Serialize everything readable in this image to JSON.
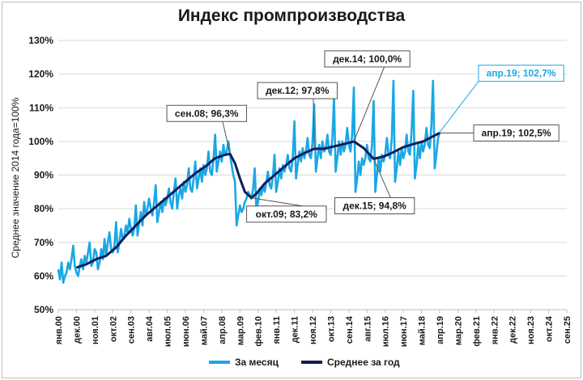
{
  "colors": {
    "monthly": "#1aa7e6",
    "average": "#0f1d5a",
    "grid": "#d9d9d9",
    "callout_border": "#555555",
    "callout_blue_border": "#1aa7e6"
  },
  "chart_data": {
    "type": "line",
    "title": "Индекс промпроизводства",
    "xlabel": "",
    "ylabel": "Среднее значение 2014 года=100%",
    "ylim": [
      50,
      130
    ],
    "y_ticks": [
      "50%",
      "60%",
      "70%",
      "80%",
      "90%",
      "100%",
      "110%",
      "120%",
      "130%"
    ],
    "x_range": [
      "2000-01",
      "2025-09"
    ],
    "x_tick_labels": [
      "янв.00",
      "дек.00",
      "ноя.01",
      "окт.02",
      "сен.03",
      "авг.04",
      "июл.05",
      "июн.06",
      "май.07",
      "апр.08",
      "мар.09",
      "фев.10",
      "янв.11",
      "дек.11",
      "ноя.12",
      "окт.13",
      "сен.14",
      "авг.15",
      "июл.16",
      "июн.17",
      "май.18",
      "апр.19",
      "мар.20",
      "фев.21",
      "янв.22",
      "дек.22",
      "ноя.23",
      "окт.24",
      "сен.25"
    ],
    "grid": true,
    "legend": "bottom",
    "series": [
      {
        "name": "За месяц",
        "key": "monthly",
        "points": [
          [
            "2000-01",
            62
          ],
          [
            "2000-02",
            59
          ],
          [
            "2000-03",
            64
          ],
          [
            "2000-04",
            58
          ],
          [
            "2000-05",
            60
          ],
          [
            "2000-06",
            61
          ],
          [
            "2000-07",
            64
          ],
          [
            "2000-08",
            62
          ],
          [
            "2000-09",
            65
          ],
          [
            "2000-10",
            69
          ],
          [
            "2000-11",
            63
          ],
          [
            "2000-12",
            61
          ],
          [
            "2001-01",
            60
          ],
          [
            "2001-02",
            63
          ],
          [
            "2001-03",
            65
          ],
          [
            "2001-04",
            62
          ],
          [
            "2001-05",
            66
          ],
          [
            "2001-06",
            64
          ],
          [
            "2001-07",
            67
          ],
          [
            "2001-08",
            70
          ],
          [
            "2001-09",
            63
          ],
          [
            "2001-10",
            64
          ],
          [
            "2001-11",
            68
          ],
          [
            "2001-12",
            67
          ],
          [
            "2002-01",
            62
          ],
          [
            "2002-02",
            64
          ],
          [
            "2002-03",
            68
          ],
          [
            "2002-04",
            65
          ],
          [
            "2002-05",
            71
          ],
          [
            "2002-06",
            66
          ],
          [
            "2002-07",
            70
          ],
          [
            "2002-08",
            73
          ],
          [
            "2002-09",
            68
          ],
          [
            "2002-10",
            67
          ],
          [
            "2002-11",
            69
          ],
          [
            "2002-12",
            76
          ],
          [
            "2003-01",
            67
          ],
          [
            "2003-02",
            70
          ],
          [
            "2003-03",
            74
          ],
          [
            "2003-04",
            71
          ],
          [
            "2003-05",
            72
          ],
          [
            "2003-06",
            75
          ],
          [
            "2003-07",
            73
          ],
          [
            "2003-08",
            77
          ],
          [
            "2003-09",
            74
          ],
          [
            "2003-10",
            72
          ],
          [
            "2003-11",
            74
          ],
          [
            "2003-12",
            81
          ],
          [
            "2004-01",
            72
          ],
          [
            "2004-02",
            76
          ],
          [
            "2004-03",
            79
          ],
          [
            "2004-04",
            75
          ],
          [
            "2004-05",
            82
          ],
          [
            "2004-06",
            78
          ],
          [
            "2004-07",
            80
          ],
          [
            "2004-08",
            83
          ],
          [
            "2004-09",
            80
          ],
          [
            "2004-10",
            78
          ],
          [
            "2004-11",
            82
          ],
          [
            "2004-12",
            87
          ],
          [
            "2005-01",
            76
          ],
          [
            "2005-02",
            79
          ],
          [
            "2005-03",
            82
          ],
          [
            "2005-04",
            79
          ],
          [
            "2005-05",
            83
          ],
          [
            "2005-06",
            81
          ],
          [
            "2005-07",
            83
          ],
          [
            "2005-08",
            86
          ],
          [
            "2005-09",
            82
          ],
          [
            "2005-10",
            80
          ],
          [
            "2005-11",
            85
          ],
          [
            "2005-12",
            89
          ],
          [
            "2006-01",
            80
          ],
          [
            "2006-02",
            84
          ],
          [
            "2006-03",
            86
          ],
          [
            "2006-04",
            83
          ],
          [
            "2006-05",
            88
          ],
          [
            "2006-06",
            85
          ],
          [
            "2006-07",
            87
          ],
          [
            "2006-08",
            92
          ],
          [
            "2006-09",
            86
          ],
          [
            "2006-10",
            85
          ],
          [
            "2006-11",
            89
          ],
          [
            "2006-12",
            94
          ],
          [
            "2007-01",
            86
          ],
          [
            "2007-02",
            89
          ],
          [
            "2007-03",
            92
          ],
          [
            "2007-04",
            88
          ],
          [
            "2007-05",
            93
          ],
          [
            "2007-06",
            90
          ],
          [
            "2007-07",
            92
          ],
          [
            "2007-08",
            97
          ],
          [
            "2007-09",
            91
          ],
          [
            "2007-10",
            90
          ],
          [
            "2007-11",
            95
          ],
          [
            "2007-12",
            102
          ],
          [
            "2008-01",
            91
          ],
          [
            "2008-02",
            94
          ],
          [
            "2008-03",
            97
          ],
          [
            "2008-04",
            94
          ],
          [
            "2008-05",
            99
          ],
          [
            "2008-06",
            96
          ],
          [
            "2008-07",
            97
          ],
          [
            "2008-08",
            100
          ],
          [
            "2008-09",
            96
          ],
          [
            "2008-10",
            93
          ],
          [
            "2008-11",
            90
          ],
          [
            "2008-12",
            88
          ],
          [
            "2009-01",
            75
          ],
          [
            "2009-02",
            78
          ],
          [
            "2009-03",
            81
          ],
          [
            "2009-04",
            79
          ],
          [
            "2009-05",
            80
          ],
          [
            "2009-06",
            82
          ],
          [
            "2009-07",
            83
          ],
          [
            "2009-08",
            85
          ],
          [
            "2009-09",
            84
          ],
          [
            "2009-10",
            83
          ],
          [
            "2009-11",
            86
          ],
          [
            "2009-12",
            92
          ],
          [
            "2010-01",
            79
          ],
          [
            "2010-02",
            82
          ],
          [
            "2010-03",
            86
          ],
          [
            "2010-04",
            84
          ],
          [
            "2010-05",
            87
          ],
          [
            "2010-06",
            85
          ],
          [
            "2010-07",
            88
          ],
          [
            "2010-08",
            91
          ],
          [
            "2010-09",
            87
          ],
          [
            "2010-10",
            86
          ],
          [
            "2010-11",
            90
          ],
          [
            "2010-12",
            96
          ],
          [
            "2011-01",
            85
          ],
          [
            "2011-02",
            88
          ],
          [
            "2011-03",
            92
          ],
          [
            "2011-04",
            89
          ],
          [
            "2011-05",
            93
          ],
          [
            "2011-06",
            91
          ],
          [
            "2011-07",
            93
          ],
          [
            "2011-08",
            96
          ],
          [
            "2011-09",
            92
          ],
          [
            "2011-10",
            91
          ],
          [
            "2011-11",
            95
          ],
          [
            "2011-12",
            106
          ],
          [
            "2012-01",
            89
          ],
          [
            "2012-02",
            93
          ],
          [
            "2012-03",
            97
          ],
          [
            "2012-04",
            94
          ],
          [
            "2012-05",
            98
          ],
          [
            "2012-06",
            95
          ],
          [
            "2012-07",
            97
          ],
          [
            "2012-08",
            101
          ],
          [
            "2012-09",
            96
          ],
          [
            "2012-10",
            95
          ],
          [
            "2012-11",
            100
          ],
          [
            "2012-12",
            111
          ],
          [
            "2013-01",
            91
          ],
          [
            "2013-02",
            95
          ],
          [
            "2013-03",
            99
          ],
          [
            "2013-04",
            95
          ],
          [
            "2013-05",
            100
          ],
          [
            "2013-06",
            97
          ],
          [
            "2013-07",
            98
          ],
          [
            "2013-08",
            102
          ],
          [
            "2013-09",
            97
          ],
          [
            "2013-10",
            96
          ],
          [
            "2013-11",
            101
          ],
          [
            "2013-12",
            113
          ],
          [
            "2014-01",
            91
          ],
          [
            "2014-02",
            95
          ],
          [
            "2014-03",
            100
          ],
          [
            "2014-04",
            96
          ],
          [
            "2014-05",
            100
          ],
          [
            "2014-06",
            97
          ],
          [
            "2014-07",
            99
          ],
          [
            "2014-08",
            104
          ],
          [
            "2014-09",
            99
          ],
          [
            "2014-10",
            97
          ],
          [
            "2014-11",
            102
          ],
          [
            "2014-12",
            116
          ],
          [
            "2015-01",
            85
          ],
          [
            "2015-02",
            89
          ],
          [
            "2015-03",
            94
          ],
          [
            "2015-04",
            90
          ],
          [
            "2015-05",
            95
          ],
          [
            "2015-06",
            93
          ],
          [
            "2015-07",
            95
          ],
          [
            "2015-08",
            99
          ],
          [
            "2015-09",
            95
          ],
          [
            "2015-10",
            94
          ],
          [
            "2015-11",
            99
          ],
          [
            "2015-12",
            112
          ],
          [
            "2016-01",
            85
          ],
          [
            "2016-02",
            90
          ],
          [
            "2016-03",
            95
          ],
          [
            "2016-04",
            91
          ],
          [
            "2016-05",
            96
          ],
          [
            "2016-06",
            94
          ],
          [
            "2016-07",
            96
          ],
          [
            "2016-08",
            101
          ],
          [
            "2016-09",
            96
          ],
          [
            "2016-10",
            95
          ],
          [
            "2016-11",
            101
          ],
          [
            "2016-12",
            118
          ],
          [
            "2017-01",
            88
          ],
          [
            "2017-02",
            92
          ],
          [
            "2017-03",
            97
          ],
          [
            "2017-04",
            93
          ],
          [
            "2017-05",
            98
          ],
          [
            "2017-06",
            95
          ],
          [
            "2017-07",
            97
          ],
          [
            "2017-08",
            102
          ],
          [
            "2017-09",
            97
          ],
          [
            "2017-10",
            96
          ],
          [
            "2017-11",
            103
          ],
          [
            "2017-12",
            115
          ],
          [
            "2018-01",
            89
          ],
          [
            "2018-02",
            93
          ],
          [
            "2018-03",
            99
          ],
          [
            "2018-04",
            95
          ],
          [
            "2018-05",
            100
          ],
          [
            "2018-06",
            97
          ],
          [
            "2018-07",
            99
          ],
          [
            "2018-08",
            104
          ],
          [
            "2018-09",
            99
          ],
          [
            "2018-10",
            98
          ],
          [
            "2018-11",
            105
          ],
          [
            "2018-12",
            118
          ],
          [
            "2019-01",
            92
          ],
          [
            "2019-02",
            96
          ],
          [
            "2019-03",
            101
          ],
          [
            "2019-04",
            102.7
          ]
        ]
      },
      {
        "name": "Среднее за год",
        "key": "average",
        "points": [
          [
            "2000-12",
            62.5
          ],
          [
            "2001-06",
            63.5
          ],
          [
            "2001-12",
            65
          ],
          [
            "2002-06",
            66
          ],
          [
            "2002-12",
            68.5
          ],
          [
            "2003-06",
            72
          ],
          [
            "2003-12",
            75
          ],
          [
            "2004-06",
            78
          ],
          [
            "2004-12",
            80.5
          ],
          [
            "2005-06",
            83
          ],
          [
            "2005-12",
            85.5
          ],
          [
            "2006-06",
            88
          ],
          [
            "2006-12",
            90.5
          ],
          [
            "2007-06",
            92.5
          ],
          [
            "2007-12",
            95
          ],
          [
            "2008-06",
            96
          ],
          [
            "2008-09",
            96.3
          ],
          [
            "2008-12",
            93.5
          ],
          [
            "2009-03",
            89
          ],
          [
            "2009-06",
            85
          ],
          [
            "2009-10",
            83.2
          ],
          [
            "2010-01",
            84.5
          ],
          [
            "2010-06",
            87.5
          ],
          [
            "2010-12",
            90
          ],
          [
            "2011-06",
            92.5
          ],
          [
            "2011-12",
            95
          ],
          [
            "2012-06",
            96.5
          ],
          [
            "2012-12",
            97.8
          ],
          [
            "2013-06",
            97.8
          ],
          [
            "2013-12",
            98.5
          ],
          [
            "2014-06",
            99.2
          ],
          [
            "2014-12",
            100
          ],
          [
            "2015-06",
            98
          ],
          [
            "2015-12",
            94.8
          ],
          [
            "2016-06",
            95.5
          ],
          [
            "2016-12",
            96.8
          ],
          [
            "2017-06",
            98.3
          ],
          [
            "2017-12",
            99.2
          ],
          [
            "2018-06",
            100
          ],
          [
            "2018-12",
            101.5
          ],
          [
            "2019-04",
            102.5
          ]
        ]
      }
    ],
    "annotations": [
      {
        "label": "сен.08; 96,3%",
        "series": "average",
        "x": "2008-09",
        "y": 96.3,
        "style": "dark"
      },
      {
        "label": "окт.09; 83,2%",
        "series": "average",
        "x": "2009-10",
        "y": 83.2,
        "style": "dark"
      },
      {
        "label": "дек.12; 97,8%",
        "series": "average",
        "x": "2012-12",
        "y": 97.8,
        "style": "dark"
      },
      {
        "label": "дек.14; 100,0%",
        "series": "average",
        "x": "2014-12",
        "y": 100.0,
        "style": "dark"
      },
      {
        "label": "дек.15; 94,8%",
        "series": "average",
        "x": "2015-12",
        "y": 94.8,
        "style": "dark"
      },
      {
        "label": "апр.19; 102,7%",
        "series": "monthly",
        "x": "2019-04",
        "y": 102.7,
        "style": "blue"
      },
      {
        "label": "апр.19; 102,5%",
        "series": "average",
        "x": "2019-04",
        "y": 102.5,
        "style": "dark"
      }
    ]
  }
}
